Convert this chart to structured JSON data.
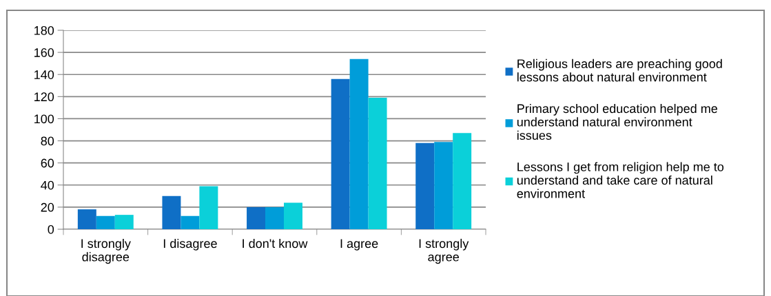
{
  "chart_data": {
    "type": "bar",
    "categories": [
      "I strongly\ndisagree",
      "I disagree",
      "I don't know",
      "I agree",
      "I strongly\nagree"
    ],
    "series": [
      {
        "name": "Religious leaders are preaching good\nlessons about natural environment",
        "color": "#0f6fc6",
        "values": [
          18,
          30,
          20,
          136,
          78
        ]
      },
      {
        "name": "Primary school education helped me\nunderstand natural environment\nissues",
        "color": "#009dd9",
        "values": [
          12,
          12,
          20,
          154,
          79
        ]
      },
      {
        "name": "Lessons I get from religion help me to\nunderstand and take care of natural\nenvironment",
        "color": "#0bd0d9",
        "values": [
          13,
          39,
          24,
          119,
          87
        ]
      }
    ],
    "ylim": [
      0,
      180
    ],
    "yticks": [
      0,
      20,
      40,
      60,
      80,
      100,
      120,
      140,
      160,
      180
    ],
    "grid": "y",
    "legend": "right"
  }
}
